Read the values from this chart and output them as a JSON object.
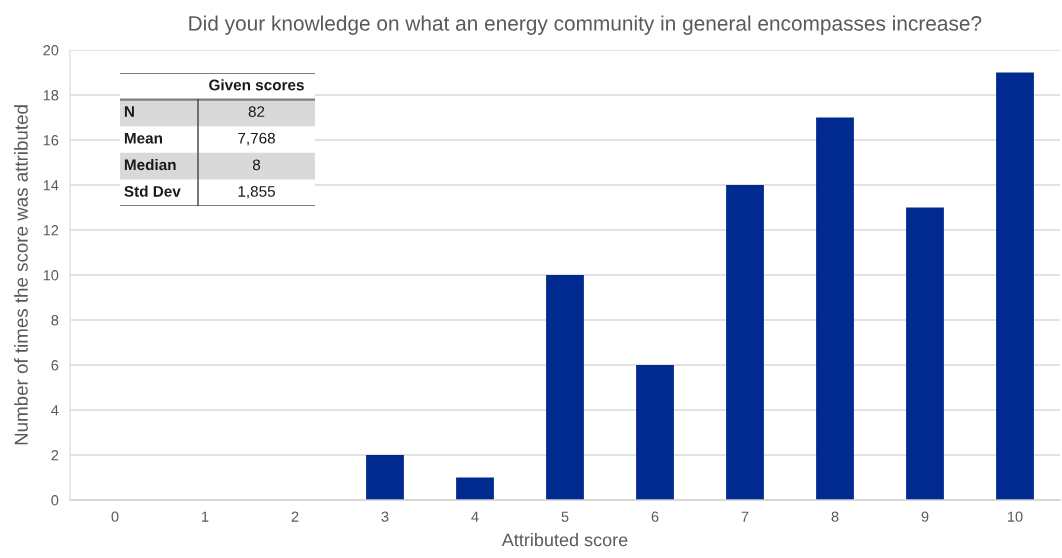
{
  "chart_data": {
    "type": "bar",
    "title": "Did your knowledge on what an energy community in general encompasses increase?",
    "xlabel": "Attributed score",
    "ylabel": "Number of times the score was attributed",
    "categories": [
      "0",
      "1",
      "2",
      "3",
      "4",
      "5",
      "6",
      "7",
      "8",
      "9",
      "10"
    ],
    "values": [
      0,
      0,
      0,
      2,
      1,
      10,
      6,
      14,
      17,
      13,
      19
    ],
    "color": "#002a8f",
    "ylim": [
      0,
      20
    ],
    "yticks": [
      0,
      2,
      4,
      6,
      8,
      10,
      12,
      14,
      16,
      18,
      20
    ],
    "grid": "y",
    "annotations": [
      "Given scores",
      "N",
      "82",
      "Mean",
      "7,768",
      "Median",
      "8",
      "Std Dev",
      "1,855"
    ]
  }
}
